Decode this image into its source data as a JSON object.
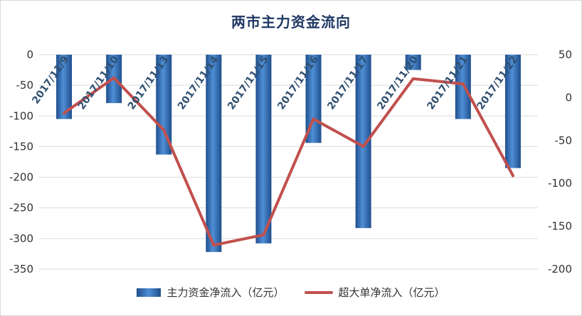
{
  "chart_data": {
    "type": "bar",
    "title": "两市主力资金流向",
    "categories": [
      "2017/11/9",
      "2017/11/10",
      "2017/11/13",
      "2017/11/14",
      "2017/11/15",
      "2017/11/16",
      "2017/11/17",
      "2017/11/20",
      "2017/11/21",
      "2017/11/22"
    ],
    "series": [
      {
        "name": "主力资金净流入（亿元）",
        "type": "bar",
        "axis": "left",
        "color": "#2e75b6",
        "values": [
          -105,
          -79,
          -163,
          -322,
          -308,
          -144,
          -283,
          -25,
          -105,
          -185
        ]
      },
      {
        "name": "超大单净流入（亿元）",
        "type": "line",
        "axis": "right",
        "color": "#c0504d",
        "values": [
          -18,
          23,
          -38,
          -172,
          -160,
          -25,
          -57,
          22,
          16,
          -91
        ]
      }
    ],
    "y_left": {
      "ylim": [
        -350,
        0
      ],
      "ticks": [
        "0",
        "-50",
        "-100",
        "-150",
        "-200",
        "-250",
        "-300",
        "-350"
      ]
    },
    "y_right": {
      "ylim": [
        -200,
        50
      ],
      "ticks": [
        "50",
        "0",
        "-50",
        "-100",
        "-150",
        "-200"
      ]
    },
    "grid": true,
    "legend_position": "bottom"
  }
}
